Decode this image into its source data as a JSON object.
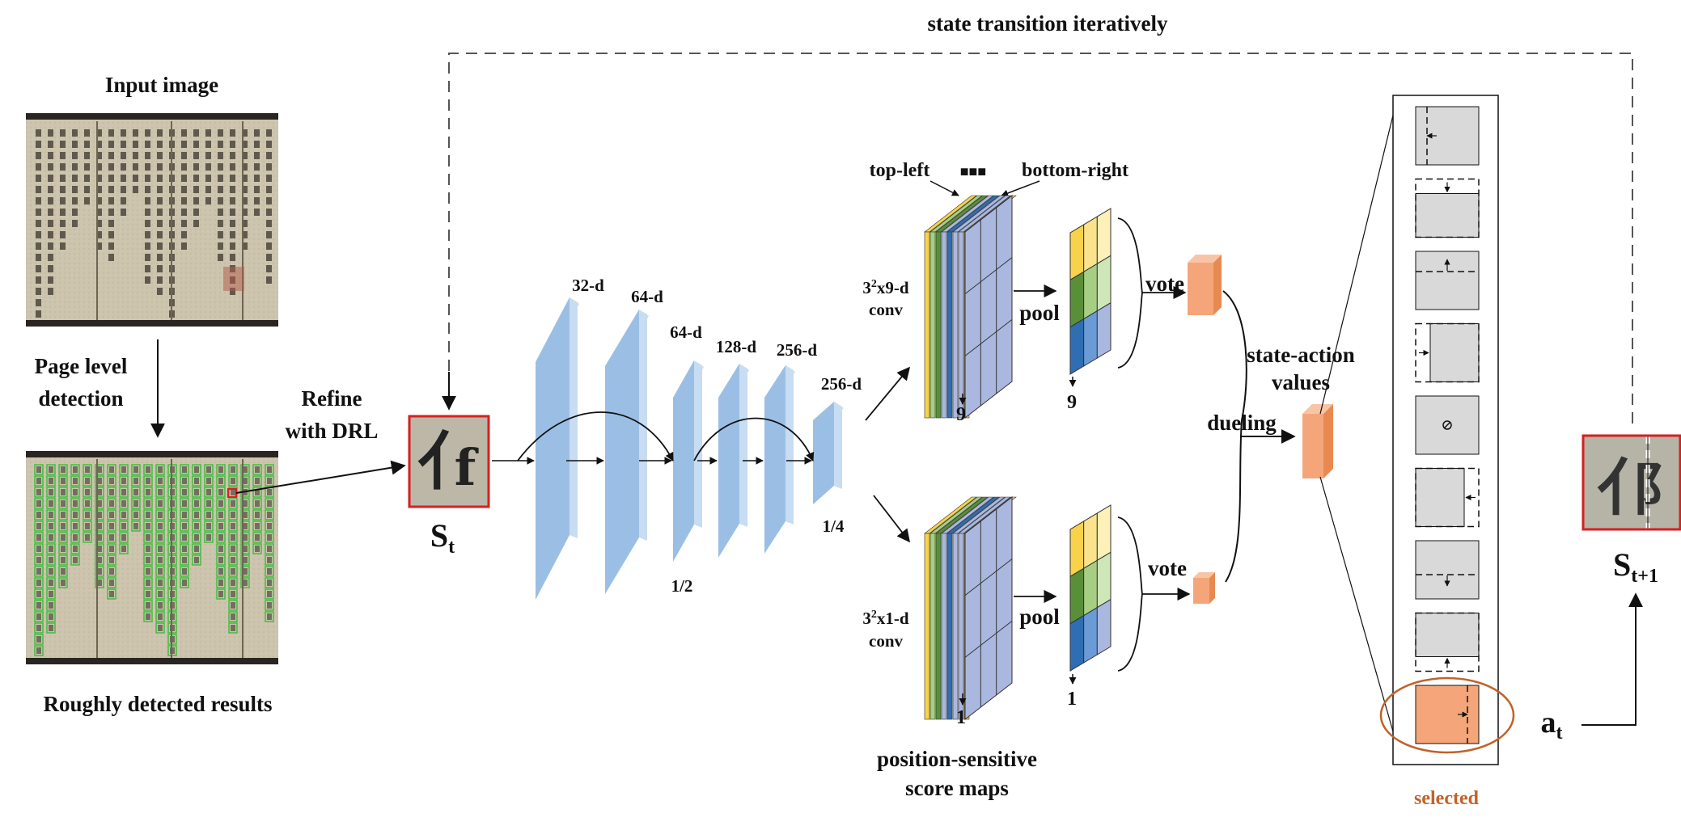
{
  "title_top": "state transition iteratively",
  "input_panel": {
    "title": "Input image",
    "arrow_label_line1": "Page level",
    "arrow_label_line2": "detection",
    "caption": "Roughly detected results"
  },
  "refine_label": {
    "line1": "Refine",
    "line2": "with DRL"
  },
  "state": {
    "base": "S",
    "sub": "t"
  },
  "next_state": {
    "base": "S",
    "sub": "t+1"
  },
  "action": {
    "base": "a",
    "sub": "t"
  },
  "backbone": {
    "layers": [
      "32-d",
      "64-d",
      "64-d",
      "128-d",
      "256-d",
      "256-d"
    ],
    "scales": [
      "1/2",
      "1/4"
    ]
  },
  "branch_top": {
    "top_left": "top-left",
    "ellipsis": "■■■",
    "bottom_right": "bottom-right",
    "conv_line1": "3",
    "conv_sup": "2",
    "conv_rest": "x9-d",
    "conv_line2": "conv",
    "count": "9",
    "pool": "pool",
    "pool_count": "9",
    "vote": "vote"
  },
  "branch_bottom": {
    "conv_line1": "3",
    "conv_sup": "2",
    "conv_rest": "x1-d",
    "conv_line2": "conv",
    "count": "1",
    "pool": "pool",
    "pool_count": "1",
    "vote": "vote"
  },
  "psm_caption": {
    "line1": "position-sensitive",
    "line2": "score maps"
  },
  "dueling": "dueling",
  "sav": {
    "line1": "state-action",
    "line2": "values"
  },
  "selected": "selected",
  "colors": {
    "layer_front": "#9bbfe4",
    "layer_side": "#c8dcf2",
    "orange": "#f4a67a",
    "orange_dark": "#e88a50",
    "selected_circle": "#c0622a",
    "selected_text": "#c0622a",
    "yellow": "#f7d24a",
    "green": "#5a8f3a",
    "lightgreen": "#a7cf84",
    "blue": "#2f6eb3",
    "lavender": "#aab8e0",
    "paper": "#cfc6b0",
    "detect_box": "#3fbf3f",
    "red_box": "#d62020"
  },
  "actions": [
    "left-shrink",
    "top-shrink",
    "bottom-shrink",
    "left-expand",
    "stop",
    "right-expand",
    "top-expand",
    "bottom-expand",
    "right-shrink"
  ],
  "selected_action_index": 8
}
